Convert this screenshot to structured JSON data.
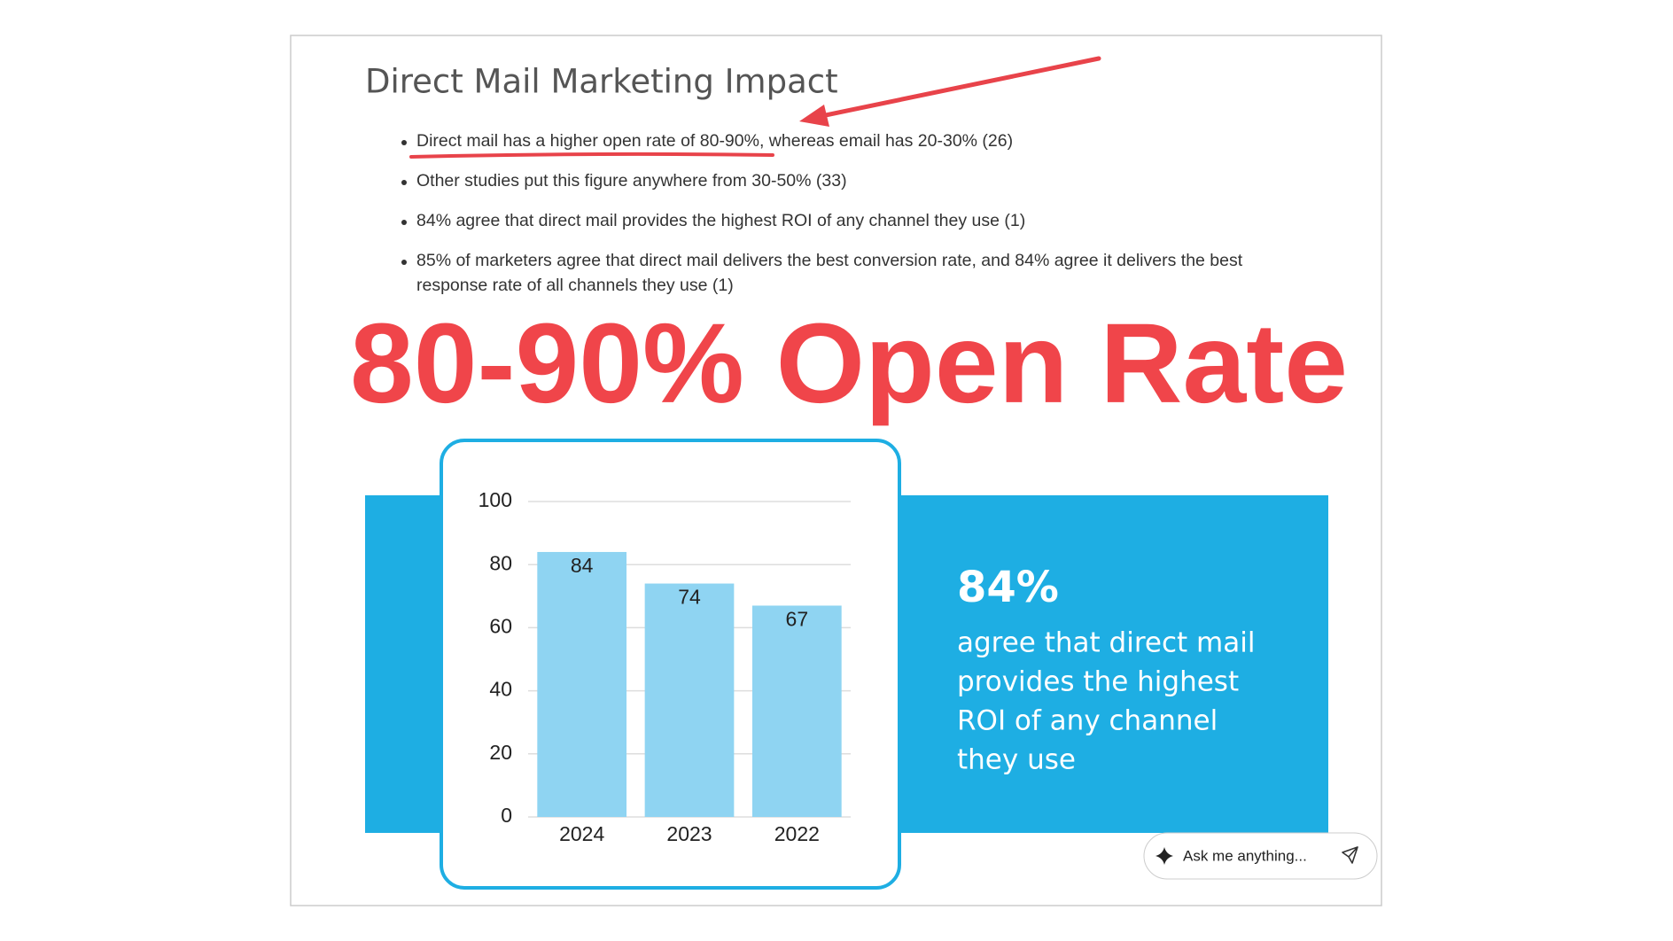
{
  "slide": {
    "title": "Direct Mail Marketing Impact",
    "bullets": [
      "Direct mail has a higher open rate of 80-90%, whereas email has 20-30% (26)",
      "Other studies put this figure anywhere from 30-50% (33)",
      "84% agree that direct mail provides the highest ROI of any channel they use (1)",
      [
        "85% of marketers agree that direct mail delivers the best conversion rate, and 84% agree it delivers the best",
        "response rate of all channels they use (1)"
      ]
    ],
    "headline": "80-90% Open Rate",
    "callout": {
      "stat": "84%",
      "lines": [
        "agree that direct mail",
        "provides the highest",
        "ROI of any channel",
        "they use"
      ]
    },
    "ask_box": "Ask me anything..."
  },
  "chart_data": {
    "type": "bar",
    "categories": [
      "2024",
      "2023",
      "2022"
    ],
    "values": [
      84,
      74,
      67
    ],
    "color": "#8fd4f2",
    "ylim": [
      0,
      100
    ],
    "yticks": [
      0,
      20,
      40,
      60,
      80,
      100
    ],
    "grid": true
  }
}
